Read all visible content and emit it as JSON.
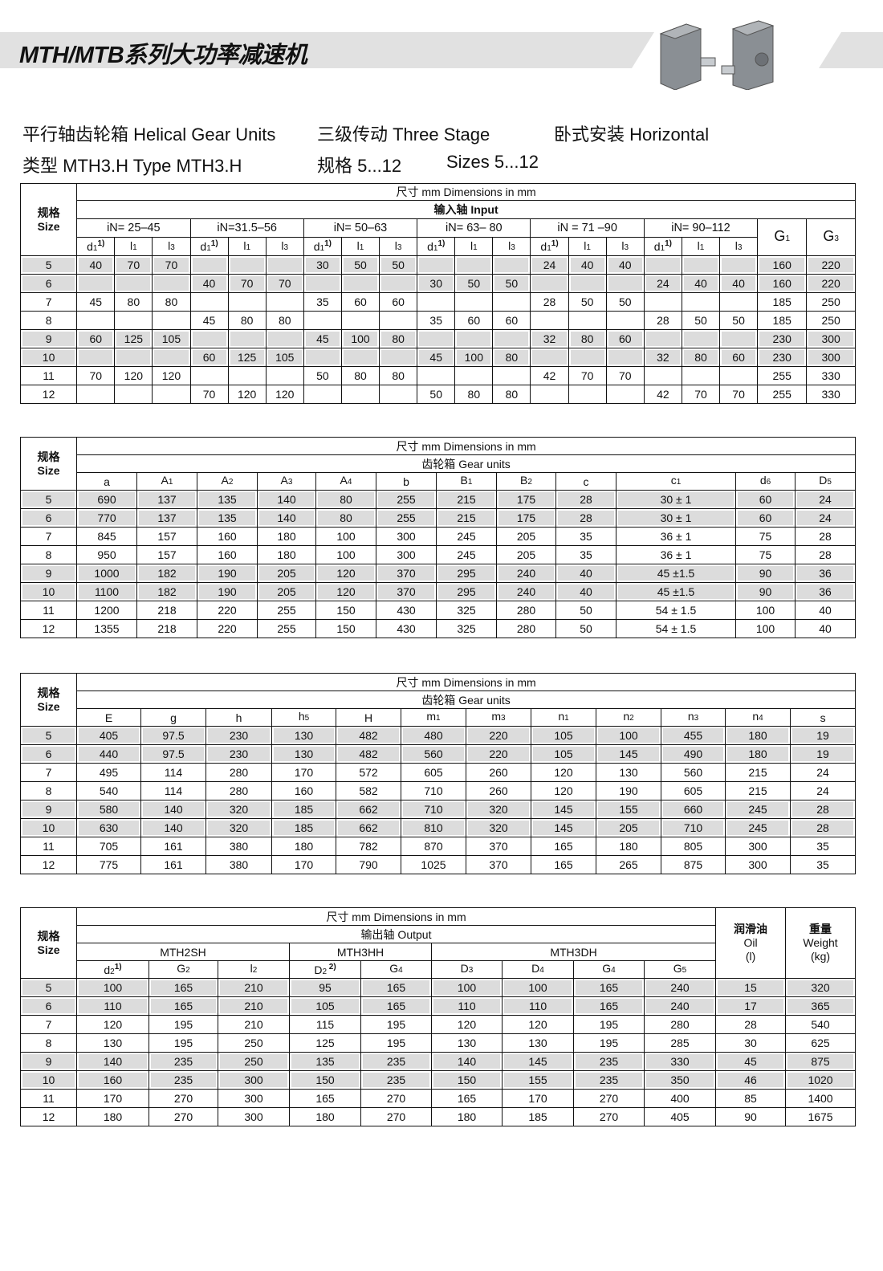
{
  "header": {
    "title": "MTH/MTB系列大功率减速机",
    "line1": [
      "平行轴齿轮箱 Helical Gear Units",
      "三级传动 Three Stage",
      "卧式安装 Horizontal"
    ],
    "line2": [
      "类型 MTH3.H Type MTH3.H",
      "规格 5...12",
      "Sizes 5...12"
    ],
    "image": "gear-unit-photos"
  },
  "common": {
    "size_cn": "规格",
    "size_en": "Size",
    "dims": "尺寸 mm Dimensions in mm"
  },
  "sizes": [
    "5",
    "6",
    "7",
    "8",
    "9",
    "10",
    "11",
    "12"
  ],
  "table1": {
    "section": "输入轴      Input",
    "groups": [
      "iN= 25–45",
      "iN=31.5–56",
      "iN= 50–63",
      "iN= 63– 80",
      "iN = 71 –90",
      "iN= 90–112"
    ],
    "group_cols": [
      {
        "t": "d",
        "sub": "1",
        "sup": "1)"
      },
      {
        "t": "l",
        "sub": "1"
      },
      {
        "t": "l",
        "sub": "3"
      }
    ],
    "extra_cols": [
      {
        "t": "G",
        "sub": "1"
      },
      {
        "t": "G",
        "sub": "3"
      }
    ],
    "rows": [
      [
        "40",
        "70",
        "70",
        "",
        "",
        "",
        "30",
        "50",
        "50",
        "",
        "",
        "",
        "24",
        "40",
        "40",
        "",
        "",
        "",
        "160",
        "220"
      ],
      [
        "",
        "",
        "",
        "40",
        "70",
        "70",
        "",
        "",
        "",
        "30",
        "50",
        "50",
        "",
        "",
        "",
        "24",
        "40",
        "40",
        "160",
        "220"
      ],
      [
        "45",
        "80",
        "80",
        "",
        "",
        "",
        "35",
        "60",
        "60",
        "",
        "",
        "",
        "28",
        "50",
        "50",
        "",
        "",
        "",
        "185",
        "250"
      ],
      [
        "",
        "",
        "",
        "45",
        "80",
        "80",
        "",
        "",
        "",
        "35",
        "60",
        "60",
        "",
        "",
        "",
        "28",
        "50",
        "50",
        "185",
        "250"
      ],
      [
        "60",
        "125",
        "105",
        "",
        "",
        "",
        "45",
        "100",
        "80",
        "",
        "",
        "",
        "32",
        "80",
        "60",
        "",
        "",
        "",
        "230",
        "300"
      ],
      [
        "",
        "",
        "",
        "60",
        "125",
        "105",
        "",
        "",
        "",
        "45",
        "100",
        "80",
        "",
        "",
        "",
        "32",
        "80",
        "60",
        "230",
        "300"
      ],
      [
        "70",
        "120",
        "120",
        "",
        "",
        "",
        "50",
        "80",
        "80",
        "",
        "",
        "",
        "42",
        "70",
        "70",
        "",
        "",
        "",
        "255",
        "330"
      ],
      [
        "",
        "",
        "",
        "70",
        "120",
        "120",
        "",
        "",
        "",
        "50",
        "80",
        "80",
        "",
        "",
        "",
        "42",
        "70",
        "70",
        "255",
        "330"
      ]
    ]
  },
  "table2": {
    "section": "齿轮箱      Gear units",
    "cols": [
      {
        "t": "a"
      },
      {
        "t": "A",
        "sub": "1"
      },
      {
        "t": "A",
        "sub": "2"
      },
      {
        "t": "A",
        "sub": "3"
      },
      {
        "t": "A",
        "sub": "4"
      },
      {
        "t": "b"
      },
      {
        "t": "B",
        "sub": "1"
      },
      {
        "t": "B",
        "sub": "2"
      },
      {
        "t": "c"
      },
      {
        "t": "c",
        "sub": "1"
      },
      {
        "t": "d",
        "sub": "6"
      },
      {
        "t": "D",
        "sub": "5"
      }
    ],
    "rows": [
      [
        "690",
        "137",
        "135",
        "140",
        "80",
        "255",
        "215",
        "175",
        "28",
        "30 ± 1",
        "60",
        "24"
      ],
      [
        "770",
        "137",
        "135",
        "140",
        "80",
        "255",
        "215",
        "175",
        "28",
        "30 ± 1",
        "60",
        "24"
      ],
      [
        "845",
        "157",
        "160",
        "180",
        "100",
        "300",
        "245",
        "205",
        "35",
        "36 ± 1",
        "75",
        "28"
      ],
      [
        "950",
        "157",
        "160",
        "180",
        "100",
        "300",
        "245",
        "205",
        "35",
        "36 ± 1",
        "75",
        "28"
      ],
      [
        "1000",
        "182",
        "190",
        "205",
        "120",
        "370",
        "295",
        "240",
        "40",
        "45 ±1.5",
        "90",
        "36"
      ],
      [
        "1100",
        "182",
        "190",
        "205",
        "120",
        "370",
        "295",
        "240",
        "40",
        "45 ±1.5",
        "90",
        "36"
      ],
      [
        "1200",
        "218",
        "220",
        "255",
        "150",
        "430",
        "325",
        "280",
        "50",
        "54 ± 1.5",
        "100",
        "40"
      ],
      [
        "1355",
        "218",
        "220",
        "255",
        "150",
        "430",
        "325",
        "280",
        "50",
        "54 ± 1.5",
        "100",
        "40"
      ]
    ]
  },
  "table3": {
    "section": "齿轮箱      Gear units",
    "cols": [
      {
        "t": "E"
      },
      {
        "t": "g"
      },
      {
        "t": "h"
      },
      {
        "t": "h",
        "sub": "5"
      },
      {
        "t": "H"
      },
      {
        "t": "m",
        "sub": "1"
      },
      {
        "t": "m",
        "sub": "3"
      },
      {
        "t": "n",
        "sub": "1"
      },
      {
        "t": "n",
        "sub": "2"
      },
      {
        "t": "n",
        "sub": "3"
      },
      {
        "t": "n",
        "sub": "4"
      },
      {
        "t": "s"
      }
    ],
    "rows": [
      [
        "405",
        "97.5",
        "230",
        "130",
        "482",
        "480",
        "220",
        "105",
        "100",
        "455",
        "180",
        "19"
      ],
      [
        "440",
        "97.5",
        "230",
        "130",
        "482",
        "560",
        "220",
        "105",
        "145",
        "490",
        "180",
        "19"
      ],
      [
        "495",
        "114",
        "280",
        "170",
        "572",
        "605",
        "260",
        "120",
        "130",
        "560",
        "215",
        "24"
      ],
      [
        "540",
        "114",
        "280",
        "160",
        "582",
        "710",
        "260",
        "120",
        "190",
        "605",
        "215",
        "24"
      ],
      [
        "580",
        "140",
        "320",
        "185",
        "662",
        "710",
        "320",
        "145",
        "155",
        "660",
        "245",
        "28"
      ],
      [
        "630",
        "140",
        "320",
        "185",
        "662",
        "810",
        "320",
        "145",
        "205",
        "710",
        "245",
        "28"
      ],
      [
        "705",
        "161",
        "380",
        "180",
        "782",
        "870",
        "370",
        "165",
        "180",
        "805",
        "300",
        "35"
      ],
      [
        "775",
        "161",
        "380",
        "170",
        "790",
        "1025",
        "370",
        "165",
        "265",
        "875",
        "300",
        "35"
      ]
    ]
  },
  "table4": {
    "section": "输出轴      Output",
    "groups": [
      "MTH2SH",
      "MTH3HH",
      "MTH3DH"
    ],
    "cols": [
      {
        "t": "d",
        "sub": "2",
        "sup": "1)"
      },
      {
        "t": "G",
        "sub": "2"
      },
      {
        "t": "l",
        "sub": "2"
      },
      {
        "t": "D",
        "sub": "2",
        "sup": " 2)"
      },
      {
        "t": "G",
        "sub": "4"
      },
      {
        "t": "D",
        "sub": "3"
      },
      {
        "t": "D",
        "sub": "4"
      },
      {
        "t": "G",
        "sub": "4"
      },
      {
        "t": "G",
        "sub": "5"
      }
    ],
    "oil": [
      "润滑油",
      "Oil",
      "(l)"
    ],
    "weight": [
      "重量",
      "Weight",
      "(kg)"
    ],
    "rows": [
      [
        "100",
        "165",
        "210",
        "95",
        "165",
        "100",
        "100",
        "165",
        "240",
        "15",
        "320"
      ],
      [
        "110",
        "165",
        "210",
        "105",
        "165",
        "110",
        "110",
        "165",
        "240",
        "17",
        "365"
      ],
      [
        "120",
        "195",
        "210",
        "115",
        "195",
        "120",
        "120",
        "195",
        "280",
        "28",
        "540"
      ],
      [
        "130",
        "195",
        "250",
        "125",
        "195",
        "130",
        "130",
        "195",
        "285",
        "30",
        "625"
      ],
      [
        "140",
        "235",
        "250",
        "135",
        "235",
        "140",
        "145",
        "235",
        "330",
        "45",
        "875"
      ],
      [
        "160",
        "235",
        "300",
        "150",
        "235",
        "150",
        "155",
        "235",
        "350",
        "46",
        "1020"
      ],
      [
        "170",
        "270",
        "300",
        "165",
        "270",
        "165",
        "170",
        "270",
        "400",
        "85",
        "1400"
      ],
      [
        "180",
        "270",
        "300",
        "180",
        "270",
        "180",
        "185",
        "270",
        "405",
        "90",
        "1675"
      ]
    ]
  },
  "colors": {
    "banner": "#e1e1e1",
    "row_shade": "#dcdcdc",
    "border": "#111111"
  }
}
